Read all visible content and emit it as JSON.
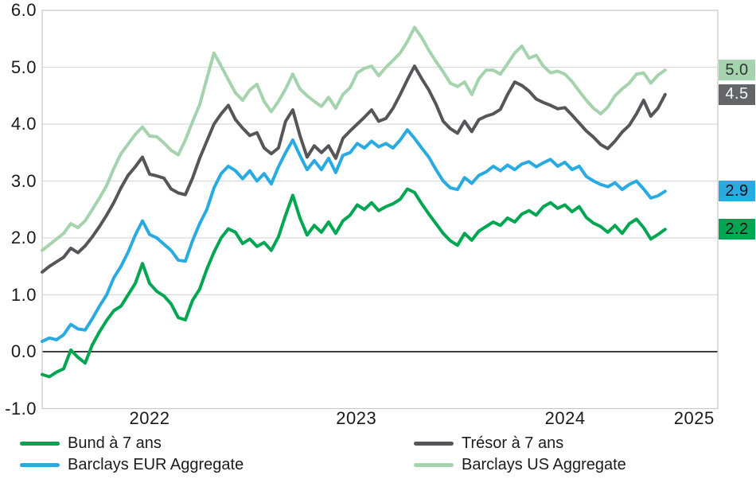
{
  "page": {
    "background": "#ffffff"
  },
  "chart_data": {
    "type": "line",
    "title": "",
    "x_axis": {
      "ticks": [
        {
          "label": "2022",
          "pos": 0.159
        },
        {
          "label": "2023",
          "pos": 0.465
        },
        {
          "label": "2024",
          "pos": 0.774
        },
        {
          "label": "2025",
          "pos": 0.965
        }
      ],
      "data_extent": 0.922
    },
    "y_axis": {
      "min": -1,
      "max": 6,
      "step": 1,
      "tick_labels": [
        "6.0",
        "5.0",
        "4.0",
        "3.0",
        "2.0",
        "1.0",
        "0.0",
        "-1.0"
      ]
    },
    "grid": {
      "horizontal": true,
      "color": "#dadada",
      "border_color": "#c9c9c9",
      "zero_line_color": "#3f3f3f"
    },
    "legend": {
      "position": "bottom",
      "columns": 2
    },
    "series": [
      {
        "key": "bund",
        "name": "Bund à 7 ans",
        "color": "#00a651",
        "line_width": 4,
        "end_label": {
          "text": "2.2",
          "bg": "#00a651",
          "fg": "#101010"
        },
        "values": [
          -0.4,
          -0.44,
          -0.36,
          -0.3,
          0.03,
          -0.1,
          -0.2,
          0.12,
          0.35,
          0.55,
          0.72,
          0.8,
          1.0,
          1.2,
          1.55,
          1.2,
          1.06,
          0.98,
          0.84,
          0.6,
          0.56,
          0.9,
          1.1,
          1.45,
          1.75,
          2.0,
          2.16,
          2.1,
          1.9,
          1.98,
          1.85,
          1.92,
          1.78,
          2.02,
          2.4,
          2.75,
          2.35,
          2.05,
          2.22,
          2.1,
          2.28,
          2.08,
          2.3,
          2.4,
          2.58,
          2.5,
          2.62,
          2.48,
          2.55,
          2.6,
          2.68,
          2.86,
          2.8,
          2.6,
          2.42,
          2.25,
          2.08,
          1.95,
          1.87,
          2.08,
          1.96,
          2.12,
          2.2,
          2.28,
          2.22,
          2.35,
          2.28,
          2.42,
          2.48,
          2.4,
          2.55,
          2.62,
          2.52,
          2.58,
          2.46,
          2.55,
          2.36,
          2.26,
          2.2,
          2.1,
          2.22,
          2.08,
          2.25,
          2.33,
          2.18,
          1.98,
          2.06,
          2.15
        ]
      },
      {
        "key": "eur-agg",
        "name": "Barclays EUR Aggregate",
        "color": "#29abe2",
        "line_width": 4,
        "end_label": {
          "text": "2.9",
          "bg": "#29abe2",
          "fg": "#101010"
        },
        "values": [
          0.18,
          0.24,
          0.21,
          0.3,
          0.48,
          0.4,
          0.38,
          0.58,
          0.8,
          1.0,
          1.3,
          1.5,
          1.75,
          2.05,
          2.3,
          2.06,
          2.0,
          1.89,
          1.78,
          1.61,
          1.59,
          1.95,
          2.25,
          2.5,
          2.88,
          3.13,
          3.26,
          3.18,
          3.04,
          3.18,
          3.0,
          3.13,
          2.95,
          3.25,
          3.5,
          3.72,
          3.45,
          3.2,
          3.36,
          3.2,
          3.4,
          3.15,
          3.45,
          3.5,
          3.66,
          3.58,
          3.7,
          3.6,
          3.66,
          3.58,
          3.72,
          3.9,
          3.75,
          3.58,
          3.42,
          3.2,
          3.0,
          2.88,
          2.85,
          3.06,
          2.96,
          3.1,
          3.16,
          3.26,
          3.18,
          3.28,
          3.2,
          3.3,
          3.34,
          3.25,
          3.32,
          3.38,
          3.26,
          3.33,
          3.2,
          3.26,
          3.08,
          3.0,
          2.94,
          2.9,
          2.97,
          2.85,
          2.94,
          3.0,
          2.86,
          2.7,
          2.74,
          2.82
        ]
      },
      {
        "key": "tresor",
        "name": "Trésor à 7 ans",
        "color": "#55565a",
        "line_width": 4,
        "end_label": {
          "text": "4.5",
          "bg": "#646568",
          "fg": "#f4f4f4"
        },
        "values": [
          1.4,
          1.5,
          1.58,
          1.66,
          1.82,
          1.74,
          1.86,
          2.02,
          2.2,
          2.4,
          2.62,
          2.88,
          3.1,
          3.25,
          3.42,
          3.12,
          3.09,
          3.05,
          2.86,
          2.79,
          2.76,
          3.05,
          3.4,
          3.7,
          4.0,
          4.18,
          4.33,
          4.08,
          3.93,
          3.8,
          3.85,
          3.58,
          3.48,
          3.58,
          4.05,
          4.25,
          3.8,
          3.42,
          3.62,
          3.5,
          3.62,
          3.4,
          3.75,
          3.88,
          4.0,
          4.12,
          4.25,
          4.05,
          4.1,
          4.28,
          4.52,
          4.78,
          5.02,
          4.8,
          4.6,
          4.35,
          4.05,
          3.92,
          3.84,
          4.05,
          3.87,
          4.08,
          4.14,
          4.18,
          4.26,
          4.52,
          4.74,
          4.68,
          4.58,
          4.44,
          4.38,
          4.33,
          4.27,
          4.29,
          4.16,
          4.02,
          3.88,
          3.77,
          3.64,
          3.57,
          3.7,
          3.86,
          3.98,
          4.18,
          4.42,
          4.14,
          4.28,
          4.52
        ]
      },
      {
        "key": "us-agg",
        "name": "Barclays US Aggregate",
        "color": "#a5d3ae",
        "line_width": 4,
        "end_label": {
          "text": "5.0",
          "bg": "#a5d3ae",
          "fg": "#333333"
        },
        "values": [
          1.78,
          1.88,
          1.98,
          2.08,
          2.25,
          2.18,
          2.3,
          2.5,
          2.7,
          2.92,
          3.22,
          3.48,
          3.65,
          3.82,
          3.95,
          3.79,
          3.78,
          3.67,
          3.54,
          3.46,
          3.72,
          4.04,
          4.34,
          4.8,
          5.25,
          5.02,
          4.78,
          4.55,
          4.42,
          4.6,
          4.7,
          4.4,
          4.22,
          4.4,
          4.62,
          4.88,
          4.62,
          4.5,
          4.4,
          4.31,
          4.47,
          4.28,
          4.52,
          4.64,
          4.9,
          4.98,
          5.02,
          4.85,
          5.0,
          5.12,
          5.25,
          5.45,
          5.7,
          5.52,
          5.3,
          5.1,
          4.92,
          4.72,
          4.66,
          4.74,
          4.52,
          4.8,
          4.95,
          4.95,
          4.88,
          5.06,
          5.25,
          5.37,
          5.16,
          5.21,
          5.02,
          4.9,
          4.93,
          4.88,
          4.75,
          4.58,
          4.42,
          4.28,
          4.18,
          4.3,
          4.5,
          4.62,
          4.72,
          4.88,
          4.9,
          4.72,
          4.86,
          4.95
        ]
      }
    ]
  }
}
